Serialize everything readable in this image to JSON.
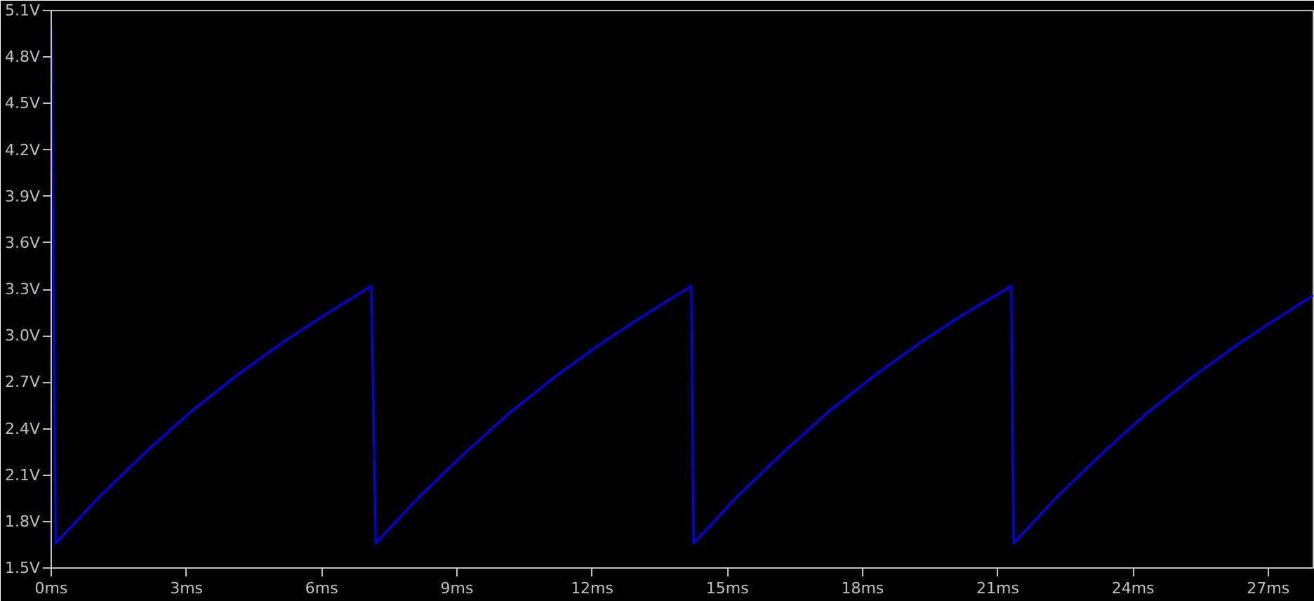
{
  "chart_data": {
    "type": "line",
    "line_style": "solid",
    "marker": "none",
    "grid": false,
    "x": [
      0,
      0.1,
      1.1,
      2.1,
      3.1,
      4.1,
      5.1,
      6.1,
      7.1,
      7.2,
      8.2,
      9.2,
      10.2,
      11.2,
      12.2,
      13.2,
      14.2,
      14.25,
      15.25,
      16.25,
      17.25,
      18.25,
      19.25,
      20.25,
      21.3,
      21.35,
      22.35,
      23.35,
      24.35,
      25.35,
      26.35,
      27.35,
      28
    ],
    "series": [
      {
        "color": "#0000ff",
        "values": [
          5.0,
          1.66,
          1.97,
          2.25,
          2.51,
          2.74,
          2.95,
          3.14,
          3.32,
          1.66,
          1.97,
          2.25,
          2.51,
          2.74,
          2.95,
          3.14,
          3.32,
          1.66,
          1.97,
          2.25,
          2.51,
          2.74,
          2.95,
          3.14,
          3.32,
          1.66,
          1.97,
          2.25,
          2.51,
          2.74,
          2.95,
          3.14,
          3.26
        ]
      }
    ],
    "xlim": [
      0,
      28
    ],
    "xticks": [
      {
        "value": 0,
        "label": "0ms"
      },
      {
        "value": 3,
        "label": "3ms"
      },
      {
        "value": 6,
        "label": "6ms"
      },
      {
        "value": 9,
        "label": "9ms"
      },
      {
        "value": 12,
        "label": "12ms"
      },
      {
        "value": 15,
        "label": "15ms"
      },
      {
        "value": 18,
        "label": "18ms"
      },
      {
        "value": 21,
        "label": "21ms"
      },
      {
        "value": 24,
        "label": "24ms"
      },
      {
        "value": 27,
        "label": "27ms"
      }
    ],
    "ylim": [
      1.5,
      5.1
    ],
    "yticks": [
      {
        "value": 1.5,
        "label": "1.5V"
      },
      {
        "value": 1.8,
        "label": "1.8V"
      },
      {
        "value": 2.1,
        "label": "2.1V"
      },
      {
        "value": 2.4,
        "label": "2.4V"
      },
      {
        "value": 2.7,
        "label": "2.7V"
      },
      {
        "value": 3.0,
        "label": "3.0V"
      },
      {
        "value": 3.3,
        "label": "3.3V"
      },
      {
        "value": 3.6,
        "label": "3.6V"
      },
      {
        "value": 3.9,
        "label": "3.9V"
      },
      {
        "value": 4.2,
        "label": "4.2V"
      },
      {
        "value": 4.5,
        "label": "4.5V"
      },
      {
        "value": 4.8,
        "label": "4.8V"
      },
      {
        "value": 5.1,
        "label": "5.1V"
      }
    ]
  }
}
